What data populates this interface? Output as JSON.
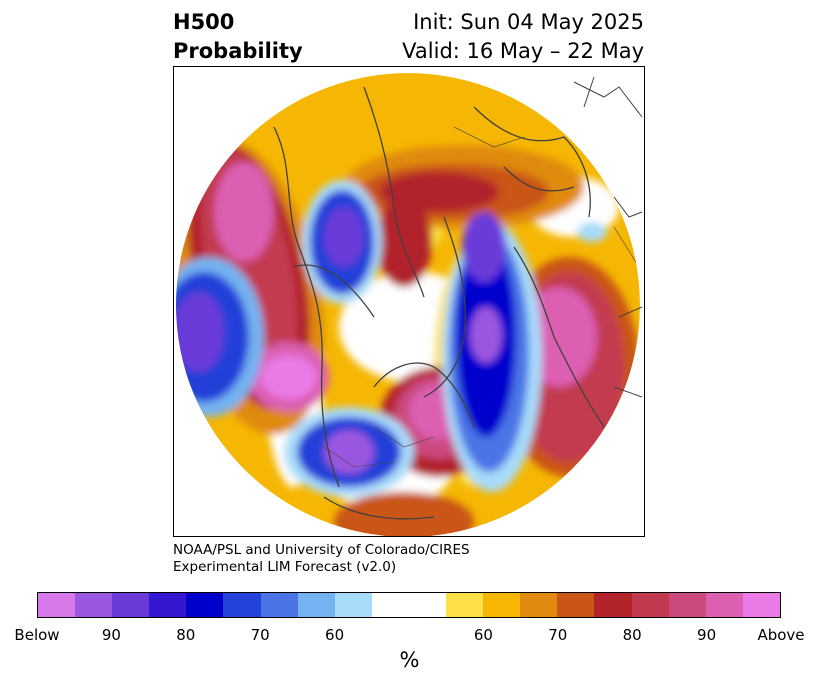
{
  "header": {
    "left_line1": "H500",
    "left_line2": "Probability",
    "init": "Init: Sun 04 May 2025",
    "valid": "Valid: 16 May – 22 May"
  },
  "credit": {
    "line1": "NOAA/PSL and University of Colorado/CIRES",
    "line2": "Experimental LIM Forecast (v2.0)"
  },
  "colorbar": {
    "unit": "%",
    "below_colors": [
      "#d878ea",
      "#9b57df",
      "#6b3bd9",
      "#3417d1",
      "#0000cd",
      "#2441d8",
      "#4b74e6",
      "#74b2f1",
      "#a8dbfa"
    ],
    "neutral_color": "#ffffff",
    "above_colors": [
      "#fde047",
      "#f5b703",
      "#e08a10",
      "#c95517",
      "#b2232a",
      "#c23a4f",
      "#cb4a7e",
      "#dc5fb2",
      "#e97ae6"
    ],
    "labels": [
      "Below",
      "90",
      "80",
      "70",
      "60",
      "60",
      "70",
      "80",
      "90",
      "Above"
    ]
  }
}
